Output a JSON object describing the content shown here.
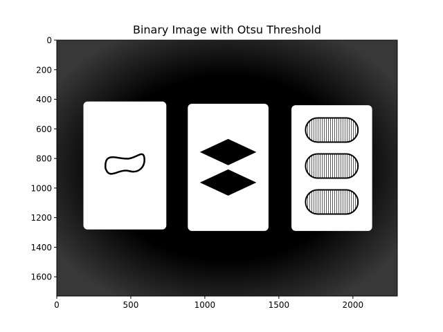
{
  "chart_data": {
    "type": "image",
    "title": "Binary Image with Otsu Threshold",
    "xlabel": "",
    "ylabel": "",
    "xlim": [
      0,
      2300
    ],
    "ylim": [
      1730,
      0
    ],
    "x_ticks": [
      0,
      500,
      1000,
      1500,
      2000
    ],
    "y_ticks": [
      0,
      200,
      400,
      600,
      800,
      1000,
      1200,
      1400,
      1600
    ],
    "colors": {
      "background": "#000000",
      "foreground": "#ffffff"
    },
    "cards": [
      {
        "x0": 180,
        "x1": 740,
        "y0": 415,
        "y1": 1280,
        "symbol": "squiggle",
        "count": 1,
        "fill": "empty"
      },
      {
        "x0": 885,
        "x1": 1430,
        "y0": 430,
        "y1": 1290,
        "symbol": "diamond",
        "count": 2,
        "fill": "solid"
      },
      {
        "x0": 1585,
        "x1": 2130,
        "y0": 440,
        "y1": 1290,
        "symbol": "oval",
        "count": 3,
        "fill": "striped"
      }
    ]
  }
}
